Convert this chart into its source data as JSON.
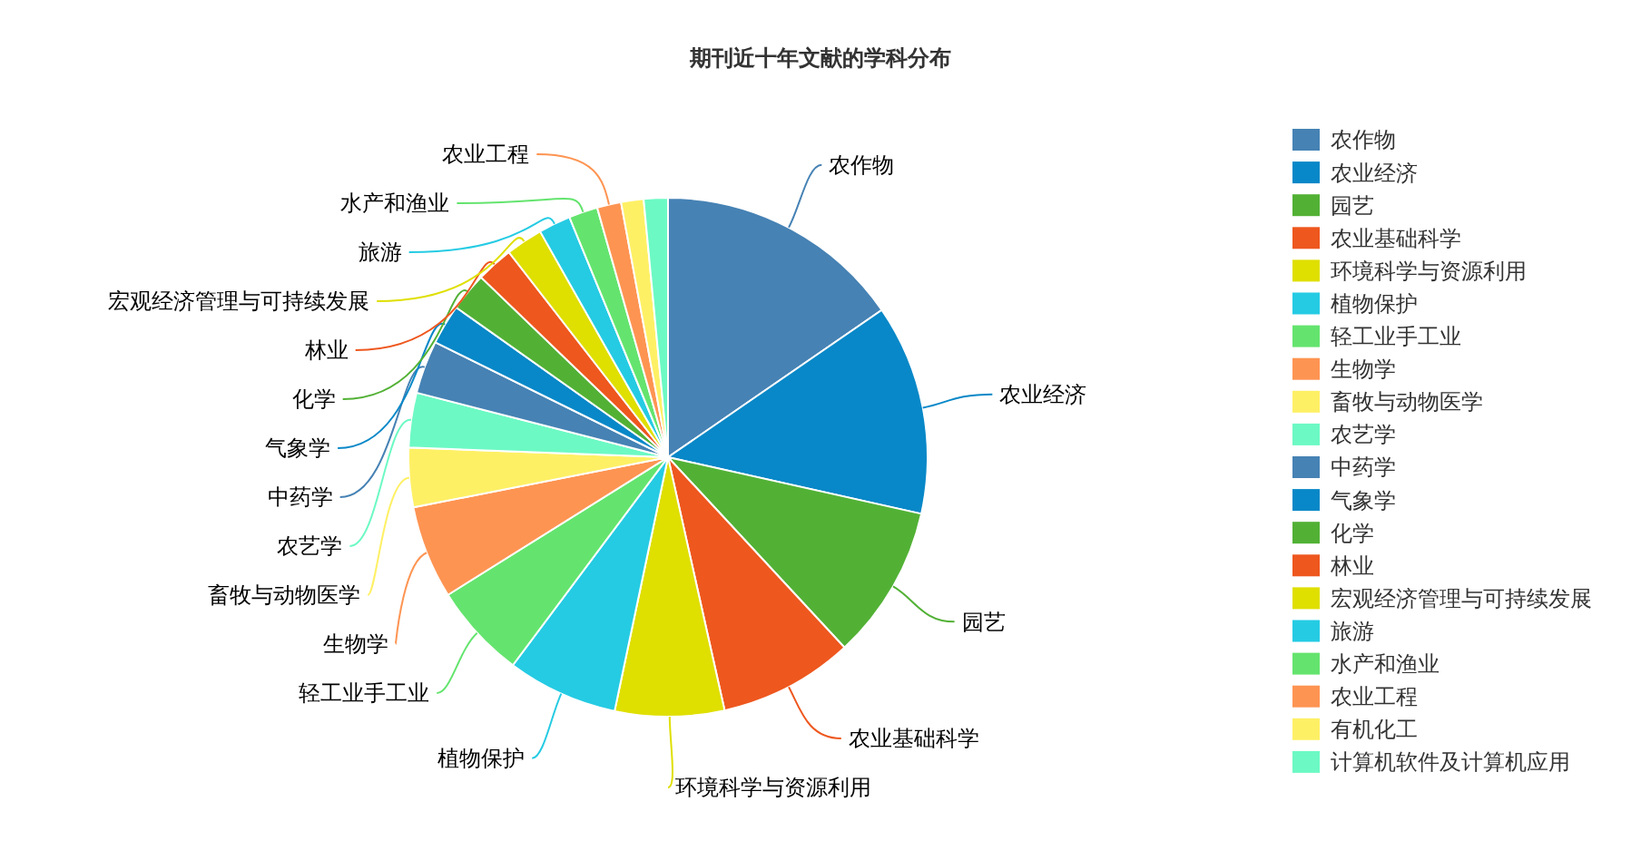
{
  "chart_data": {
    "type": "pie",
    "title": "期刊近十年文献的学科分布",
    "categories": [
      "农作物",
      "农业经济",
      "园艺",
      "农业基础科学",
      "环境科学与资源利用",
      "植物保护",
      "轻工业手工业",
      "生物学",
      "畜牧与动物医学",
      "农艺学",
      "中药学",
      "气象学",
      "化学",
      "林业",
      "宏观经济管理与可持续发展",
      "旅游",
      "水产和渔业",
      "农业工程",
      "有机化工",
      "计算机软件及计算机应用"
    ],
    "values": [
      15.4,
      13.1,
      9.6,
      8.4,
      6.8,
      6.9,
      5.9,
      5.8,
      3.7,
      3.4,
      3.3,
      2.5,
      2.4,
      2.3,
      2.3,
      2.0,
      1.8,
      1.5,
      1.4,
      1.5
    ],
    "colors": [
      "#4682b4",
      "#0888c8",
      "#52b135",
      "#ee571e",
      "#dfdf00",
      "#25cbe3",
      "#64e46e",
      "#fe9452",
      "#fef065",
      "#6cf9c4",
      "#4682b4",
      "#0888c8",
      "#52b135",
      "#ee571e",
      "#dfdf00",
      "#25cbe3",
      "#64e46e",
      "#fe9452",
      "#fef065",
      "#6cf9c4"
    ],
    "legend": "right"
  }
}
